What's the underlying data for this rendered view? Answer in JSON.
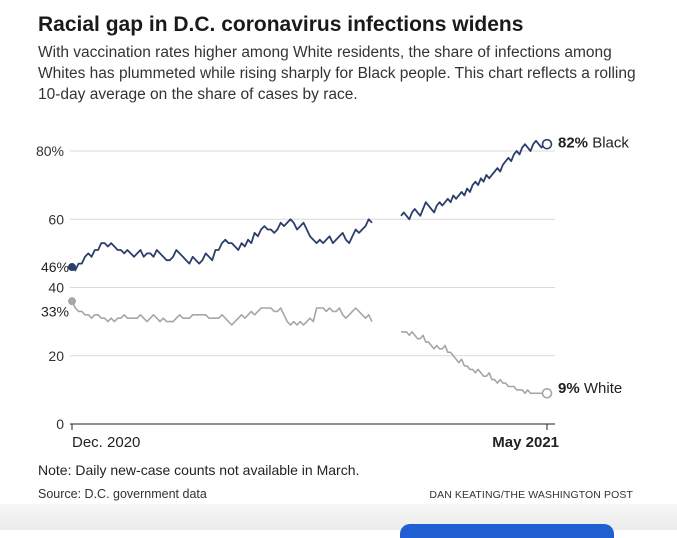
{
  "title": "Racial gap in D.C. coronavirus infections widens",
  "subtitle": "With vaccination rates higher among White residents, the share of infections among Whites has plummeted while rising sharply for Black people. This chart reflects a rolling 10-day average on the share of cases by race.",
  "note": "Note: Daily new-case counts not available in March.",
  "source": "Source: D.C. government data",
  "credit": "DAN KEATING/THE WASHINGTON POST",
  "colors": {
    "black_series": "#2c3e6b",
    "white_series": "#a6a6a6",
    "gridline": "#d9d9d9",
    "axis_text": "#333333"
  },
  "chart_data": {
    "type": "line",
    "title": "Racial gap in D.C. coronavirus infections widens",
    "ylim": [
      0,
      85
    ],
    "yticks": [
      0,
      20,
      40,
      60,
      80
    ],
    "ytick_labels": [
      "0",
      "20",
      "40",
      "60",
      "80%"
    ],
    "x_labels": [
      "Dec. 2020",
      "May 2021"
    ],
    "x_domain_days": [
      0,
      175
    ],
    "gap_note": "Data gap in March",
    "grid": true,
    "series": [
      {
        "name": "Black",
        "color": "#2c3e6b",
        "start_label": "46%",
        "end_label_value": "82%",
        "end_label_name": "Black",
        "x": [
          0,
          3,
          6,
          9,
          12,
          15,
          18,
          21,
          24,
          27,
          30,
          33,
          36,
          39,
          42,
          45,
          48,
          51,
          54,
          57,
          60,
          63,
          66,
          69,
          72,
          75,
          78,
          81,
          84,
          87,
          90,
          93,
          96,
          99,
          102,
          105,
          108,
          111,
          114,
          117,
          120,
          123,
          126,
          129,
          132,
          135,
          138,
          141,
          144,
          147,
          150,
          153,
          156,
          159,
          162,
          165,
          168,
          171,
          174,
          177,
          180,
          183,
          186,
          189,
          192,
          195,
          198,
          201,
          204,
          207,
          210,
          213,
          216,
          219,
          222,
          225
        ],
        "y": [
          46,
          47,
          49,
          51,
          52,
          53,
          53,
          52,
          51,
          50,
          50,
          49,
          51,
          50,
          49,
          48,
          47,
          51,
          53,
          54,
          53,
          52,
          51,
          53,
          56,
          58,
          57,
          57,
          59,
          59,
          59,
          60,
          56,
          54,
          53,
          52,
          53,
          55,
          57,
          60,
          60,
          59,
          59,
          null,
          62,
          61,
          63,
          62,
          64,
          64,
          65,
          66,
          67,
          69,
          70,
          71,
          73,
          72,
          74,
          76,
          77,
          78,
          79,
          80,
          81,
          81,
          80,
          81,
          82,
          82,
          83,
          82,
          83,
          83,
          82,
          82
        ],
        "y_clean": null
      },
      {
        "name": "White",
        "color": "#a6a6a6",
        "start_label": "33%",
        "end_label_value": "9%",
        "end_label_name": "White"
      }
    ]
  }
}
